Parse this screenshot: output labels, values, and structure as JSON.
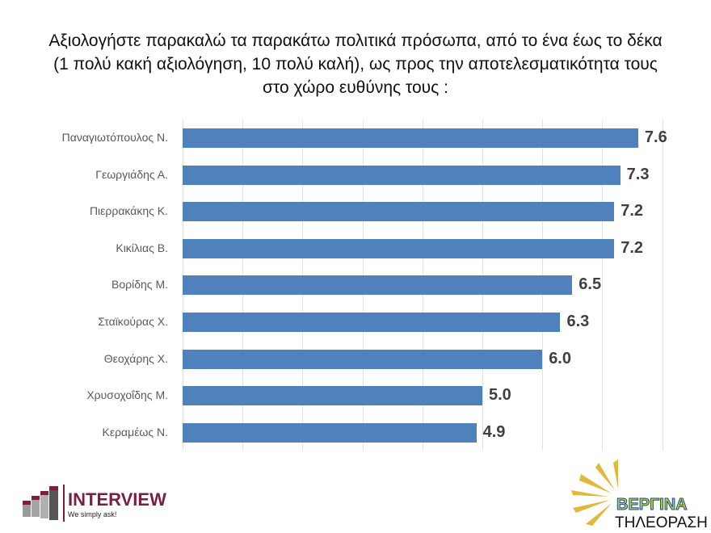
{
  "title_lines": [
    "Αξιολογήστε παρακαλώ τα παρακάτω πολιτικά πρόσωπα, από το ένα έως το δέκα",
    "(1 πολύ κακή αξιολόγηση, 10 πολύ καλή), ως προς την αποτελεσματικότητα τους",
    "στο χώρο ευθύνης τους :"
  ],
  "colors": {
    "bar": "#4f81bd",
    "label": "#595959",
    "value": "#404040",
    "brand_interview": "#7a1f3d"
  },
  "logos": {
    "interview_name": "INTERVIEW",
    "interview_tagline": "We simply ask!",
    "vergina_name": "ΒΕΡΓΙΝΑ",
    "vergina_sub": "ΤΗΛΕΟΡΑΣΗ"
  },
  "chart_data": {
    "type": "bar",
    "orientation": "horizontal",
    "title": "Αξιολογήστε παρακαλώ τα παρακάτω πολιτικά πρόσωπα, από το ένα έως το δέκα (1 πολύ κακή αξιολόγηση, 10 πολύ καλή), ως προς την αποτελεσματικότητα τους στο χώρο ευθύνης τους :",
    "categories": [
      "Παναγιωτόπουλος Ν.",
      "Γεωργιάδης Α.",
      "Πιερρακάκης Κ.",
      "Κικίλιας Β.",
      "Βορίδης Μ.",
      "Σταϊκούρας Χ.",
      "Θεοχάρης Χ.",
      "Χρυσοχοΐδης Μ.",
      "Κεραμέως Ν."
    ],
    "values": [
      7.6,
      7.3,
      7.2,
      7.2,
      6.5,
      6.3,
      6.0,
      5.0,
      4.9
    ],
    "value_labels": [
      "7.6",
      "7.3",
      "7.2",
      "7.2",
      "6.5",
      "6.3",
      "6.0",
      "5.0",
      "4.9"
    ],
    "xlabel": "",
    "ylabel": "",
    "xlim": [
      0,
      8
    ],
    "grid": true,
    "legend": null
  }
}
